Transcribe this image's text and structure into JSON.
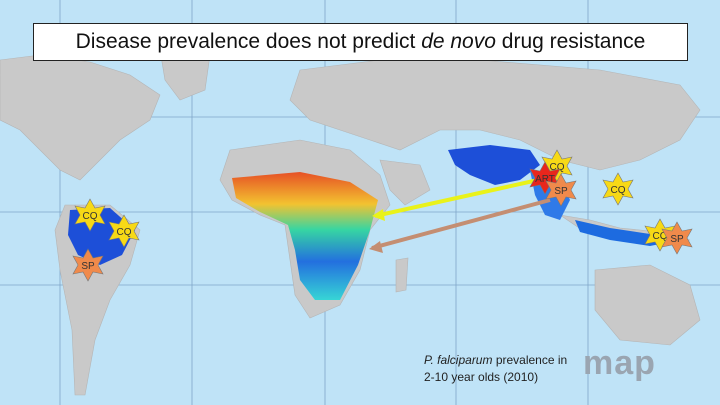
{
  "title": {
    "prefix": "Disease prevalence does not predict ",
    "italic": "de novo",
    "suffix": " drug resistance"
  },
  "caption": {
    "species": "P. falciparum",
    "line1_rest": " prevalence in",
    "line2": "2-10 year olds (2010)"
  },
  "logo": {
    "text": "map"
  },
  "badges": [
    {
      "label": "CQ",
      "color": "#f7d916"
    },
    {
      "label": "CQ",
      "color": "#f7d916"
    },
    {
      "label": "SP",
      "color": "#f08a4b"
    },
    {
      "label": "CQ",
      "color": "#f7d916"
    },
    {
      "label": "ART",
      "color": "#e8261c"
    },
    {
      "label": "SP",
      "color": "#f08a4b"
    },
    {
      "label": "CQ",
      "color": "#f7d916"
    },
    {
      "label": "CQ",
      "color": "#f7d916"
    },
    {
      "label": "SP",
      "color": "#f08a4b"
    }
  ],
  "arrows": [
    {
      "from": "Southeast Asia",
      "to": "East Africa",
      "color": "#e9f21a"
    },
    {
      "from": "Southeast Asia",
      "to": "East Africa",
      "color": "#c48e72"
    }
  ],
  "colors": {
    "ocean": "#bfe3f7",
    "land": "#c9c9c9",
    "low_prevalence": "#1d4fd8",
    "high_prevalence": "#e84a1c"
  }
}
